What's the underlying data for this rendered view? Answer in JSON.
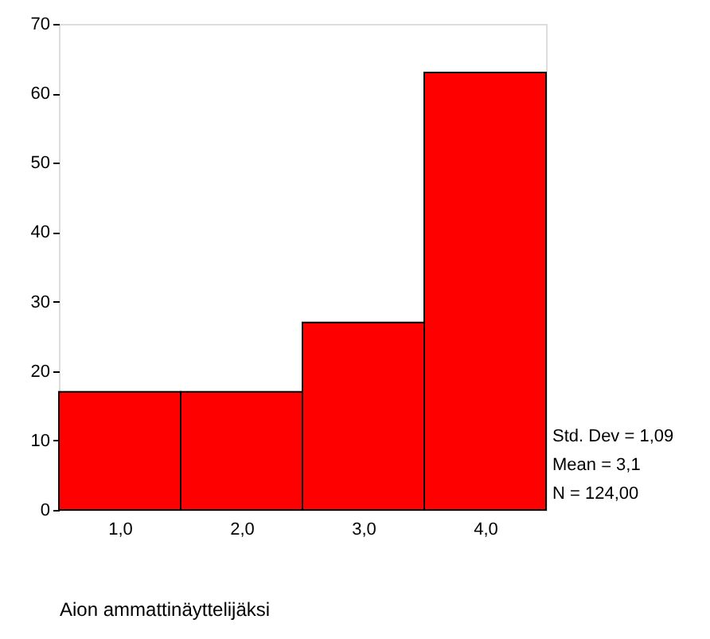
{
  "chart_data": {
    "type": "histogram",
    "xlabel": "Aion ammattinäyttelijäksi",
    "bins": [
      0.5,
      1.5,
      2.5,
      3.5,
      4.5
    ],
    "values": [
      17,
      17,
      27,
      63
    ],
    "color": "#ff0000",
    "xlim": [
      0.5,
      4.5
    ],
    "xticks": [
      {
        "value": 1,
        "label": "1,0"
      },
      {
        "value": 2,
        "label": "2,0"
      },
      {
        "value": 3,
        "label": "3,0"
      },
      {
        "value": 4,
        "label": "4,0"
      }
    ],
    "ylim": [
      0,
      70
    ],
    "yticks": [
      0,
      10,
      20,
      30,
      40,
      50,
      60,
      70
    ],
    "grid": false,
    "annotations": [
      "Std. Dev = 1,09",
      "Mean = 3,1",
      "N = 124,00"
    ]
  }
}
